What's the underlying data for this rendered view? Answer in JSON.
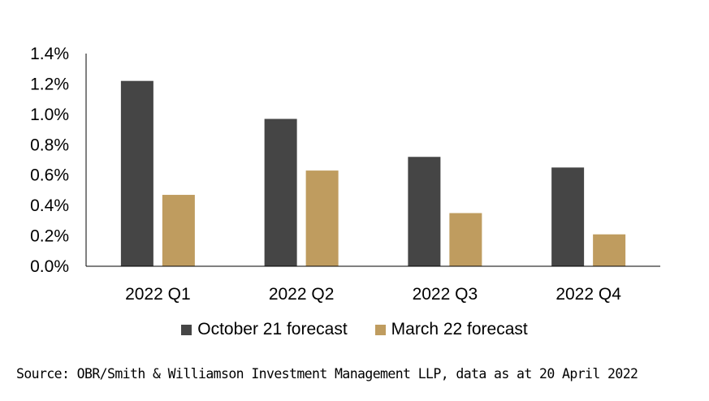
{
  "chart_data": {
    "type": "bar",
    "title": "",
    "xlabel": "",
    "ylabel": "",
    "categories": [
      "2022 Q1",
      "2022 Q2",
      "2022 Q3",
      "2022 Q4"
    ],
    "series": [
      {
        "name": "October 21 forecast",
        "color": "#454545",
        "values": [
          1.22,
          0.97,
          0.72,
          0.65
        ]
      },
      {
        "name": "March 22 forecast",
        "color": "#bf9c5f",
        "values": [
          0.47,
          0.63,
          0.35,
          0.21
        ]
      }
    ],
    "ylim": [
      0,
      1.4
    ],
    "yticks": [
      0.0,
      0.2,
      0.4,
      0.6,
      0.8,
      1.0,
      1.2,
      1.4
    ],
    "ytick_labels": [
      "0.0%",
      "0.2%",
      "0.4%",
      "0.6%",
      "0.8%",
      "1.0%",
      "1.2%",
      "1.4%"
    ],
    "grid": false,
    "legend_position": "bottom"
  },
  "source": "Source: OBR/Smith & Williamson Investment Management LLP, data as at 20 April 2022"
}
